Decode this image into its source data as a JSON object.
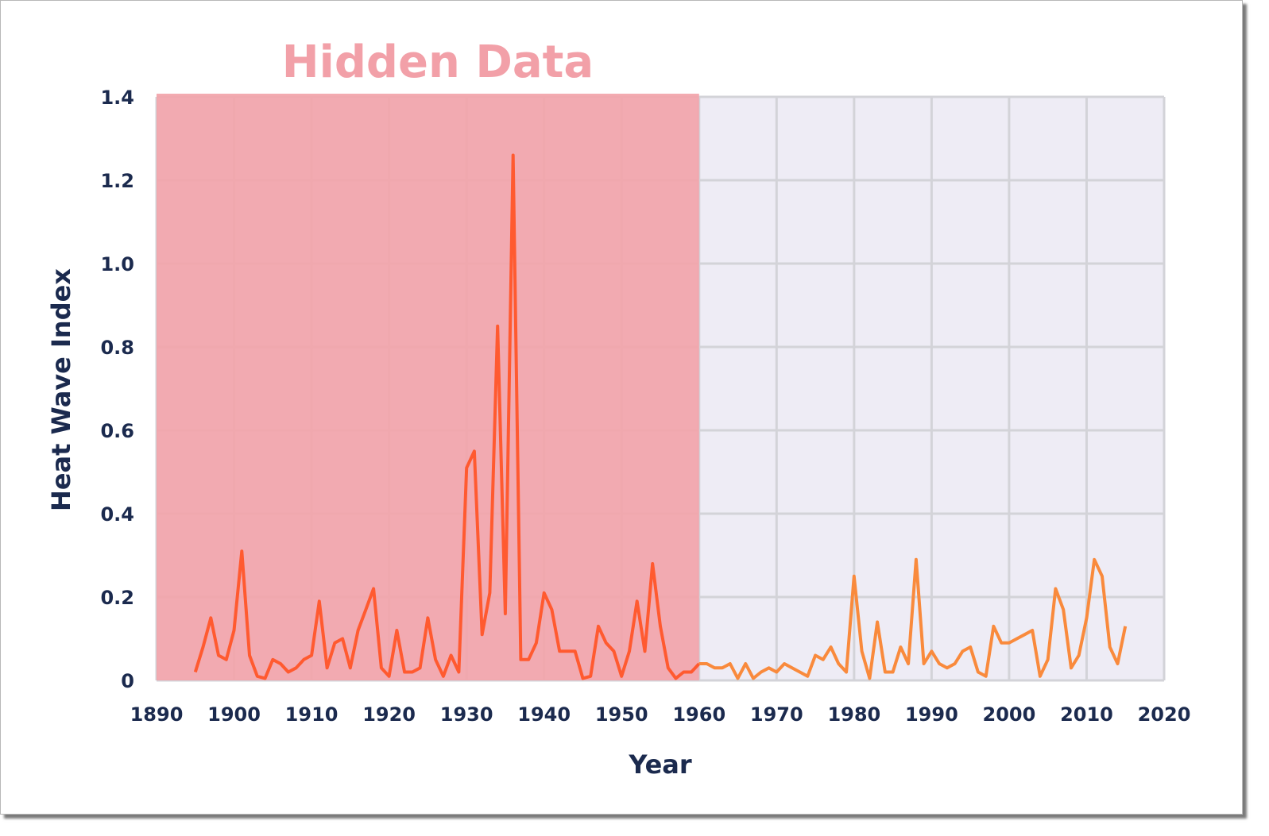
{
  "chart_data": {
    "type": "line",
    "title": "",
    "annotation": {
      "text": "Hidden Data",
      "x_from": 1890,
      "x_to": 1960,
      "color": "#f2a4aa"
    },
    "xlabel": "Year",
    "ylabel": "Heat Wave Index",
    "xlim": [
      1890,
      2020
    ],
    "ylim": [
      0,
      1.4
    ],
    "x_ticks": [
      "1890",
      "1900",
      "1910",
      "1920",
      "1930",
      "1940",
      "1950",
      "1960",
      "1970",
      "1980",
      "1990",
      "2000",
      "2010",
      "2020"
    ],
    "y_ticks": [
      "0",
      "0.2",
      "0.4",
      "0.6",
      "0.8",
      "1.0",
      "1.2",
      "1.4"
    ],
    "grid": true,
    "colors": {
      "hidden_line": "#ff5a30",
      "visible_line": "#f98a3c",
      "plot_bg": "#eeecf5",
      "grid": "#d3d3d8",
      "axis_text": "#1b2a4e"
    },
    "series": [
      {
        "x": [
          1895,
          1896,
          1897,
          1898,
          1899,
          1900,
          1901,
          1902,
          1903,
          1904,
          1905,
          1906,
          1907,
          1908,
          1909,
          1910,
          1911,
          1912,
          1913,
          1914,
          1915,
          1916,
          1917,
          1918,
          1919,
          1920,
          1921,
          1922,
          1923,
          1924,
          1925,
          1926,
          1927,
          1928,
          1929,
          1930,
          1931,
          1932,
          1933,
          1934,
          1935,
          1936,
          1937,
          1938,
          1939,
          1940,
          1941,
          1942,
          1943,
          1944,
          1945,
          1946,
          1947,
          1948,
          1949,
          1950,
          1951,
          1952,
          1953,
          1954,
          1955,
          1956,
          1957,
          1958,
          1959,
          1960,
          1961,
          1962,
          1963,
          1964,
          1965,
          1966,
          1967,
          1968,
          1969,
          1970,
          1971,
          1972,
          1973,
          1974,
          1975,
          1976,
          1977,
          1978,
          1979,
          1980,
          1981,
          1982,
          1983,
          1984,
          1985,
          1986,
          1987,
          1988,
          1989,
          1990,
          1991,
          1992,
          1993,
          1994,
          1995,
          1996,
          1997,
          1998,
          1999,
          2000,
          2001,
          2002,
          2003,
          2004,
          2005,
          2006,
          2007,
          2008,
          2009,
          2010,
          2011,
          2012,
          2013,
          2014,
          2015
        ],
        "y": [
          0.02,
          0.08,
          0.15,
          0.06,
          0.05,
          0.12,
          0.31,
          0.06,
          0.01,
          0.005,
          0.05,
          0.04,
          0.02,
          0.03,
          0.05,
          0.06,
          0.19,
          0.03,
          0.09,
          0.1,
          0.03,
          0.12,
          0.17,
          0.22,
          0.03,
          0.01,
          0.12,
          0.02,
          0.02,
          0.03,
          0.15,
          0.05,
          0.01,
          0.06,
          0.02,
          0.51,
          0.55,
          0.11,
          0.21,
          0.85,
          0.16,
          1.26,
          0.05,
          0.05,
          0.09,
          0.21,
          0.17,
          0.07,
          0.07,
          0.07,
          0.005,
          0.01,
          0.13,
          0.09,
          0.07,
          0.01,
          0.07,
          0.19,
          0.07,
          0.28,
          0.13,
          0.03,
          0.005,
          0.02,
          0.02,
          0.04,
          0.04,
          0.03,
          0.03,
          0.04,
          0.005,
          0.04,
          0.005,
          0.02,
          0.03,
          0.02,
          0.04,
          0.03,
          0.02,
          0.01,
          0.06,
          0.05,
          0.08,
          0.04,
          0.02,
          0.25,
          0.07,
          0.005,
          0.14,
          0.02,
          0.02,
          0.08,
          0.04,
          0.29,
          0.04,
          0.07,
          0.04,
          0.03,
          0.04,
          0.07,
          0.08,
          0.02,
          0.01,
          0.13,
          0.09,
          0.09,
          0.1,
          0.11,
          0.12,
          0.01,
          0.05,
          0.22,
          0.17,
          0.03,
          0.06,
          0.15,
          0.29,
          0.25,
          0.08,
          0.04,
          0.13
        ]
      }
    ]
  }
}
